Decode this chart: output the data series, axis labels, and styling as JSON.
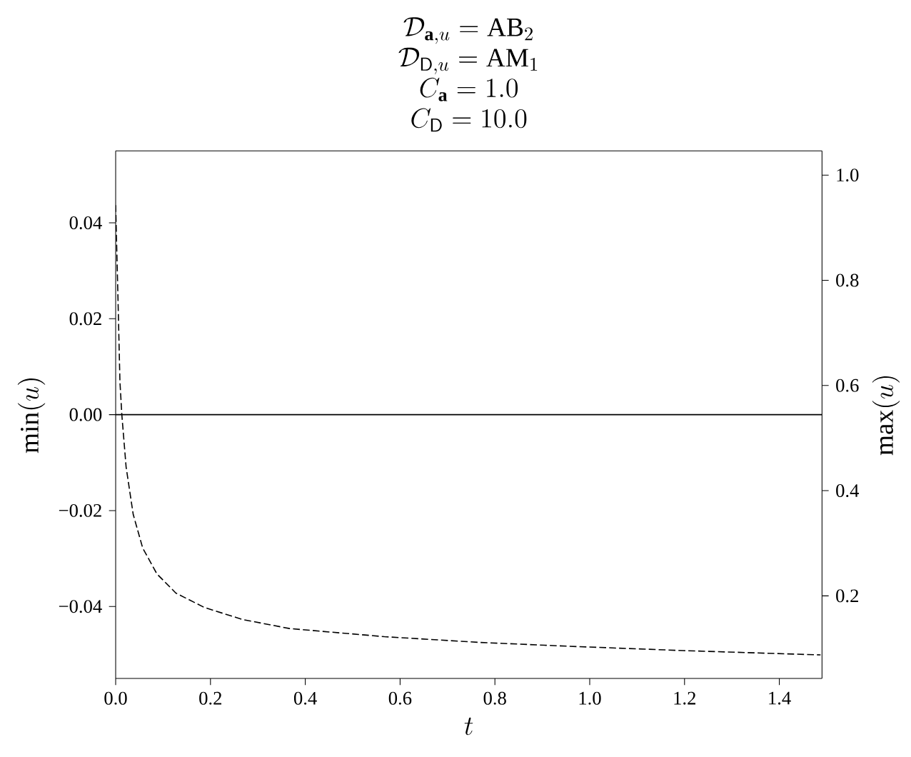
{
  "chart_data": {
    "type": "line",
    "title": "\\begin{array}{c}\\mathcal{D}_{\\mathbf{a},u}=\\mathrm{AB}_2\\\\ \\mathcal{D}_{\\mathsf{D},u}=\\mathrm{AM}_1\\\\ C_{\\mathbf{a}}=1.0\\\\ C_{\\mathsf{D}}=10.0\\end{array}",
    "xlabel": "t",
    "ylabel": "\\min(u)",
    "y2label": "\\max(u)",
    "xlim": [
      0,
      1.49
    ],
    "ylim": [
      -0.055,
      0.055
    ],
    "y2lim": [
      0.043,
      1.046
    ],
    "xticks": [
      {
        "value": 0,
        "label": "0.0"
      },
      {
        "value": 0.2,
        "label": "0.2"
      },
      {
        "value": 0.4,
        "label": "0.4"
      },
      {
        "value": 0.6,
        "label": "0.6"
      },
      {
        "value": 0.8,
        "label": "0.8"
      },
      {
        "value": 1.0,
        "label": "1.0"
      },
      {
        "value": 1.2,
        "label": "1.2"
      },
      {
        "value": 1.4,
        "label": "1.4"
      }
    ],
    "yticks": [
      {
        "value": -0.04,
        "label": "−0.04"
      },
      {
        "value": -0.02,
        "label": "−0.02"
      },
      {
        "value": 0,
        "label": "0.00"
      },
      0.02,
      0.04
    ],
    "y2ticks": [
      0.2,
      0.4,
      0.6,
      0.8,
      {
        "value": 1.0,
        "label": "1.0"
      }
    ],
    "ref_lines": [
      {
        "axis": "y",
        "value": 0,
        "color": "#000000",
        "line_style": "solid"
      }
    ],
    "series": [
      {
        "color": "#000000",
        "line_style": "dashed",
        "x": [
          0,
          0.005,
          0.009,
          0.013,
          0.022,
          0.037,
          0.057,
          0.087,
          0.127,
          0.187,
          0.267,
          0.367,
          0.567,
          0.77,
          0.958,
          1.198,
          1.487
        ],
        "values": [
          0.0437,
          0.0238,
          0.0069,
          0,
          -0.0109,
          -0.0208,
          -0.0278,
          -0.0332,
          -0.0372,
          -0.0402,
          -0.0427,
          -0.0446,
          -0.0463,
          -0.0475,
          -0.0483,
          -0.0492,
          -0.0501
        ]
      }
    ]
  }
}
